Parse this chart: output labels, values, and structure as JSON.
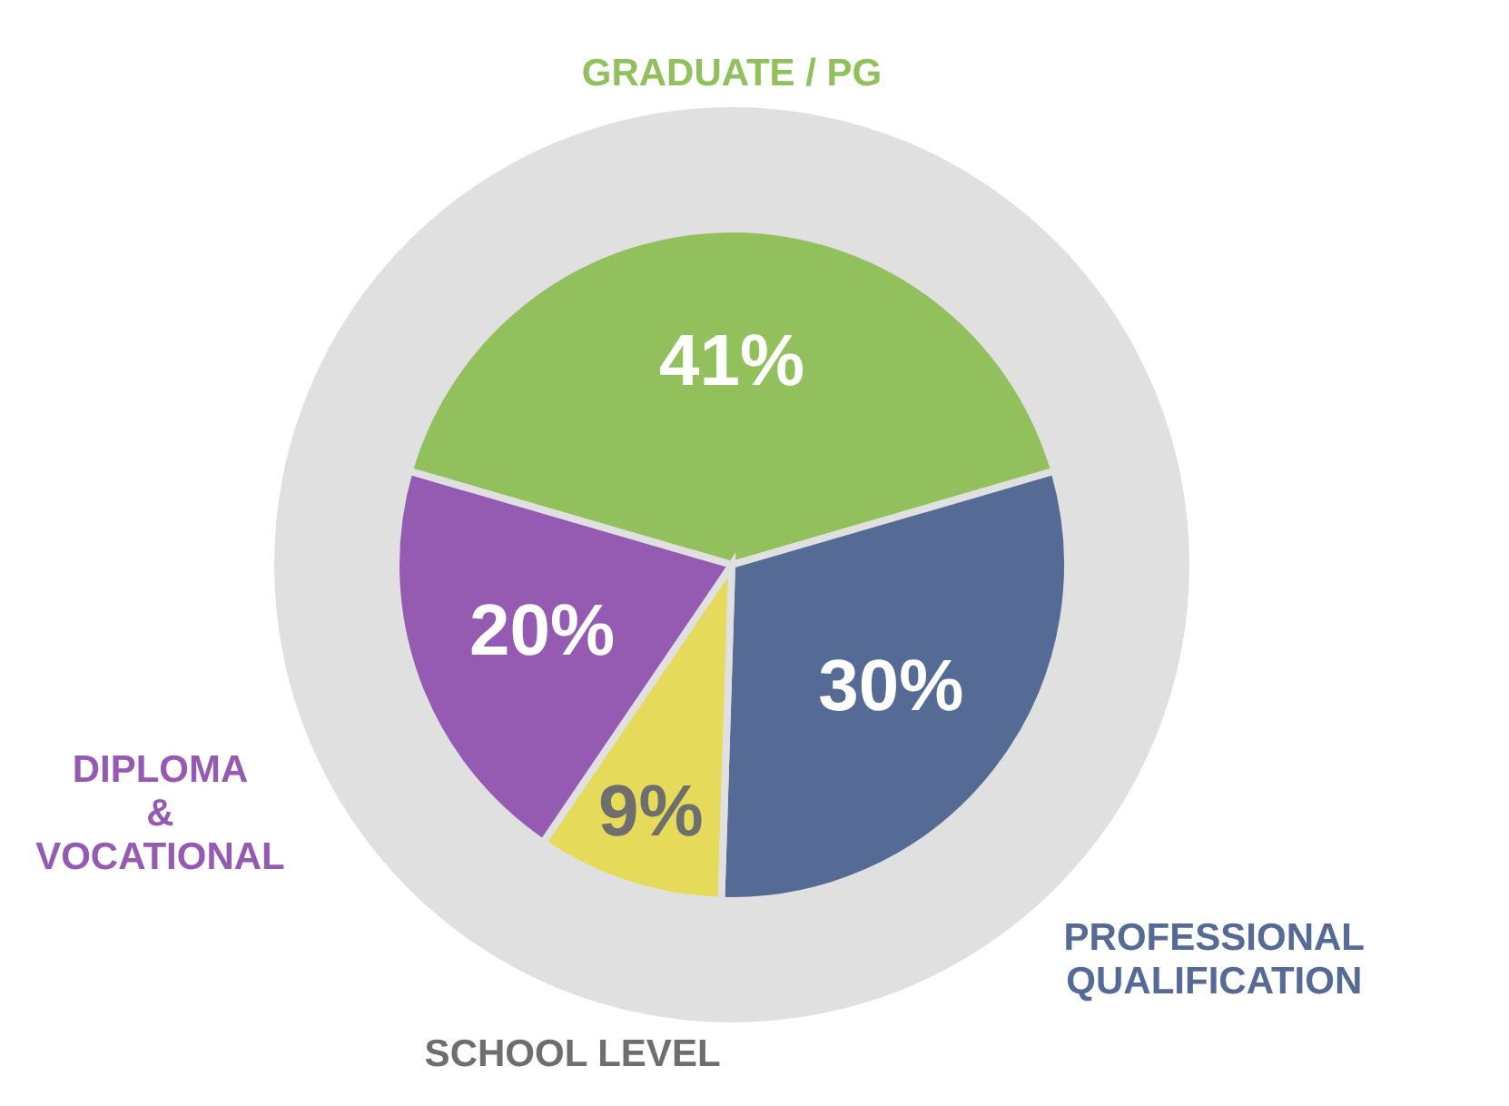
{
  "chart_data": {
    "type": "pie",
    "categories": [
      "GRADUATE / PG",
      "PROFESSIONAL QUALIFICATION",
      "SCHOOL LEVEL",
      "DIPLOMA & VOCATIONAL"
    ],
    "values": [
      41,
      30,
      9,
      20
    ],
    "colors": [
      "#92c05c",
      "#556a94",
      "#e5da5a",
      "#955bb3"
    ],
    "value_labels": [
      "41%",
      "30%",
      "9%",
      "20%"
    ]
  }
}
